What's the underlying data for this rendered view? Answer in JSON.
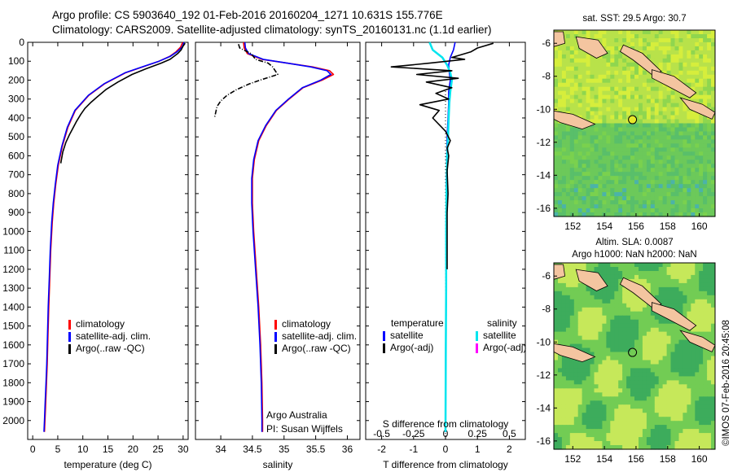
{
  "header": {
    "line1": "Argo profile: CS 5903640_192 01-Feb-2016 20160204_1271 10.631S 155.776E",
    "line2": "Climatology: CARS2009. Satellite-adjusted climatology: synTS_20160131.nc (1.1d earlier)"
  },
  "colors": {
    "climatology": "#ff0000",
    "satellite": "#0000ff",
    "argo": "#000000",
    "sal_satellite": "#00e5ee",
    "sal_argo": "#ff00ff",
    "land": "#f4c5a0"
  },
  "chart_data": [
    {
      "type": "line",
      "xlabel": "temperature (deg C)",
      "ylabel": "",
      "xlim": [
        -1,
        31
      ],
      "ylim": [
        2100,
        0
      ],
      "xticks": [
        0,
        5,
        10,
        15,
        20,
        25,
        30
      ],
      "yticks": [
        0,
        100,
        200,
        300,
        400,
        500,
        600,
        700,
        800,
        900,
        1000,
        1100,
        1200,
        1300,
        1400,
        1500,
        1600,
        1700,
        1800,
        1900,
        2000
      ],
      "legend": {
        "entries": [
          "climatology",
          "satellite-adj. clim.",
          "Argo(..raw -QC)"
        ]
      },
      "series": [
        {
          "name": "climatology",
          "color": "#ff0000",
          "x": [
            29.9,
            29.5,
            28.6,
            27.3,
            25.2,
            22.5,
            18.6,
            14.3,
            11.2,
            8.5,
            7.0,
            5.9,
            5.1,
            4.6,
            4.2,
            3.9,
            3.6,
            3.4,
            3.2,
            3.05,
            2.9,
            2.75,
            2.6,
            2.45,
            2.35
          ],
          "y": [
            0,
            25,
            50,
            75,
            100,
            125,
            160,
            220,
            280,
            360,
            450,
            550,
            650,
            750,
            850,
            950,
            1100,
            1250,
            1400,
            1550,
            1700,
            1800,
            1900,
            2000,
            2060
          ]
        },
        {
          "name": "satellite-adj. clim.",
          "color": "#0000ff",
          "x": [
            30.2,
            29.8,
            28.8,
            27.4,
            25.2,
            22.4,
            18.5,
            14.2,
            11.1,
            8.4,
            6.9,
            5.8,
            5.0,
            4.5,
            4.1,
            3.8,
            3.5,
            3.3,
            3.1,
            2.95,
            2.8,
            2.65,
            2.5,
            2.35,
            2.25
          ],
          "y": [
            0,
            25,
            50,
            75,
            100,
            125,
            160,
            220,
            280,
            360,
            450,
            550,
            650,
            750,
            850,
            950,
            1100,
            1250,
            1400,
            1550,
            1700,
            1800,
            1900,
            2000,
            2060
          ]
        },
        {
          "name": "Argo(..raw -QC)",
          "color": "#000000",
          "x": [
            30.4,
            30.0,
            29.6,
            28.9,
            27.4,
            25.6,
            22.6,
            19.8,
            17.0,
            14.6,
            12.8,
            11.5,
            10.4,
            9.6,
            8.7,
            8.1,
            7.3,
            6.6,
            6.0,
            5.6
          ],
          "y": [
            5,
            20,
            40,
            60,
            90,
            110,
            140,
            170,
            210,
            250,
            290,
            320,
            350,
            380,
            420,
            450,
            490,
            530,
            580,
            640
          ]
        }
      ]
    },
    {
      "type": "line",
      "xlabel": "salinity",
      "xlim": [
        33.6,
        36.2
      ],
      "ylim": [
        2100,
        0
      ],
      "xticks": [
        34,
        34.5,
        35,
        35.5,
        36
      ],
      "legend": {
        "entries": [
          "climatology",
          "satellite-adj. clim.",
          "Argo(..raw -QC)"
        ]
      },
      "annotation": [
        "Argo Australia",
        "PI: Susan Wijffels"
      ],
      "series": [
        {
          "name": "climatology",
          "color": "#ff0000",
          "x": [
            34.36,
            34.37,
            34.42,
            34.65,
            35.05,
            35.45,
            35.72,
            35.78,
            35.6,
            35.3,
            35.08,
            34.88,
            34.72,
            34.6,
            34.53,
            34.5,
            34.5,
            34.52,
            34.56,
            34.6,
            34.63,
            34.65,
            34.66,
            34.66
          ],
          "y": [
            0,
            30,
            60,
            90,
            110,
            130,
            150,
            170,
            200,
            240,
            300,
            360,
            440,
            520,
            620,
            720,
            850,
            1000,
            1200,
            1400,
            1600,
            1800,
            2000,
            2060
          ]
        },
        {
          "name": "satellite-adj. clim.",
          "color": "#0000ff",
          "x": [
            34.38,
            34.39,
            34.44,
            34.67,
            35.05,
            35.42,
            35.68,
            35.74,
            35.58,
            35.29,
            35.07,
            34.87,
            34.71,
            34.59,
            34.52,
            34.49,
            34.49,
            34.51,
            34.55,
            34.59,
            34.62,
            34.64,
            34.65,
            34.65
          ],
          "y": [
            0,
            30,
            60,
            90,
            110,
            130,
            150,
            170,
            200,
            240,
            300,
            360,
            440,
            520,
            620,
            720,
            850,
            1000,
            1200,
            1400,
            1600,
            1800,
            2000,
            2060
          ]
        },
        {
          "name": "Argo(..raw -QC)",
          "color": "#000000",
          "x": [
            34.28,
            34.3,
            34.48,
            34.55,
            34.75,
            34.82,
            34.86,
            34.9,
            34.62,
            34.45,
            34.25,
            34.1,
            34.0,
            33.94,
            33.92,
            33.9
          ],
          "y": [
            10,
            30,
            60,
            90,
            110,
            130,
            150,
            170,
            200,
            220,
            250,
            280,
            310,
            340,
            370,
            400
          ]
        }
      ]
    },
    {
      "type": "line",
      "xlabel": "T difference from climatology",
      "xlabel_top": "S difference from climatology",
      "xlim": [
        -2.5,
        2.5
      ],
      "ylim": [
        2100,
        0
      ],
      "xticks": [
        -2,
        -1,
        0,
        1,
        2
      ],
      "top_tick_labels": [
        "-0.5",
        "-0.25",
        "0",
        "0.25",
        "0.5"
      ],
      "legend": {
        "headers": [
          "temperature",
          "salinity"
        ],
        "entries": [
          "satellite",
          "Argo(-adj)",
          "satellite",
          "Argo(-adj)"
        ]
      },
      "series": [
        {
          "name": "satellite",
          "color": "#0000ff",
          "x": [
            0.3,
            0.25,
            0.15,
            0.1,
            0.12,
            0.15,
            0.1,
            0.1,
            0.08,
            0.05,
            0.04,
            0.03,
            0.02,
            0.02,
            0.02,
            0.02,
            0.01,
            0.0,
            0.0
          ],
          "y": [
            0,
            40,
            80,
            120,
            160,
            200,
            260,
            320,
            400,
            500,
            600,
            700,
            800,
            900,
            1100,
            1300,
            1500,
            1800,
            2060
          ]
        },
        {
          "name": "satellite",
          "color": "#00e5ee",
          "x": [
            -0.5,
            -0.4,
            -0.1,
            0.05,
            0.15,
            0.2,
            0.15,
            0.12,
            0.1,
            0.08,
            0.05,
            0.04,
            0.03,
            0.02,
            0.02,
            0.01,
            0.0
          ],
          "y": [
            0,
            40,
            80,
            120,
            160,
            200,
            260,
            320,
            400,
            500,
            600,
            700,
            800,
            1000,
            1300,
            1600,
            2060
          ]
        },
        {
          "name": "Argo(-adj)",
          "color": "#000000",
          "x": [
            1.5,
            1.0,
            0.8,
            0.2,
            0.6,
            -0.5,
            -1.7,
            0.2,
            -0.9,
            0.4,
            -0.6,
            0.2,
            -0.3,
            0.1,
            -0.8,
            -0.2,
            -0.4,
            0.0,
            0.15,
            0.05,
            0.1,
            0.05,
            0.08,
            0.05,
            0.05,
            0.05,
            0.05
          ],
          "y": [
            5,
            30,
            50,
            80,
            90,
            110,
            130,
            150,
            170,
            190,
            210,
            240,
            270,
            300,
            330,
            360,
            400,
            470,
            520,
            560,
            600,
            680,
            800,
            900,
            1000,
            1100,
            1200
          ]
        }
      ]
    },
    {
      "type": "heatmap",
      "title": "sat. SST: 29.5 Argo: 30.7",
      "xlim": [
        150.8,
        161
      ],
      "ylim": [
        -16.5,
        -5.2
      ],
      "xticks": [
        152,
        154,
        156,
        158,
        160
      ],
      "yticks": [
        -6,
        -8,
        -10,
        -12,
        -14,
        -16
      ],
      "marker": {
        "lon": 155.776,
        "lat": -10.631
      }
    },
    {
      "type": "heatmap",
      "title": [
        "Altim. SLA: 0.0087",
        "Argo h1000: NaN h2000: NaN"
      ],
      "xlim": [
        150.8,
        161
      ],
      "ylim": [
        -16.5,
        -5.2
      ],
      "xticks": [
        152,
        154,
        156,
        158,
        160
      ],
      "yticks": [
        -6,
        -8,
        -10,
        -12,
        -14,
        -16
      ],
      "marker": {
        "lon": 155.776,
        "lat": -10.631
      }
    }
  ],
  "footer": {
    "credit": "©IMOS 07-Feb-2016 20:45:08"
  }
}
